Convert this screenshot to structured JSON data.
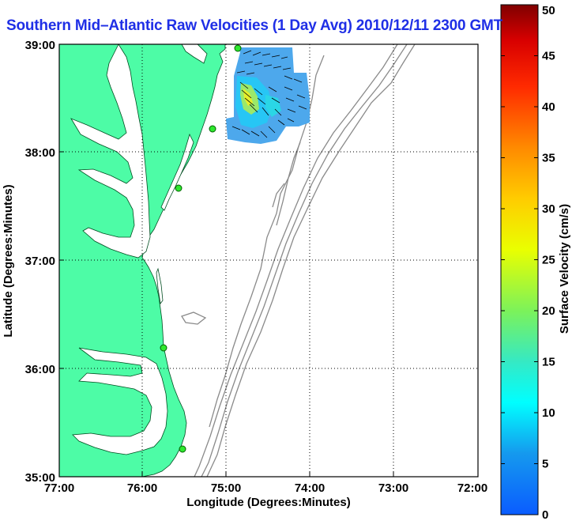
{
  "title": "Southern Mid–Atlantic Raw Velocities (1 Day Avg) 2010/12/11 2300 GMT",
  "axes": {
    "xlabel": "Longitude (Degrees:Minutes)",
    "ylabel": "Latitude (Degrees:Minutes)",
    "xticks": [
      "77:00",
      "76:00",
      "75:00",
      "74:00",
      "73:00",
      "72:00"
    ],
    "yticks": [
      "39:00",
      "38:00",
      "37:00",
      "36:00",
      "35:00"
    ],
    "grid": "dotted"
  },
  "colorbar": {
    "label": "Surface Velocity (cm/s)",
    "ticks": [
      "0",
      "5",
      "10",
      "15",
      "20",
      "25",
      "30",
      "35",
      "40",
      "45",
      "50"
    ],
    "min": 0,
    "max": 50,
    "colormap": "jet"
  },
  "colors": {
    "land": "#4dfca6",
    "title": "#1f2fe6",
    "bathymetry": "#8a8a8a",
    "station": "#2ee82e"
  }
}
